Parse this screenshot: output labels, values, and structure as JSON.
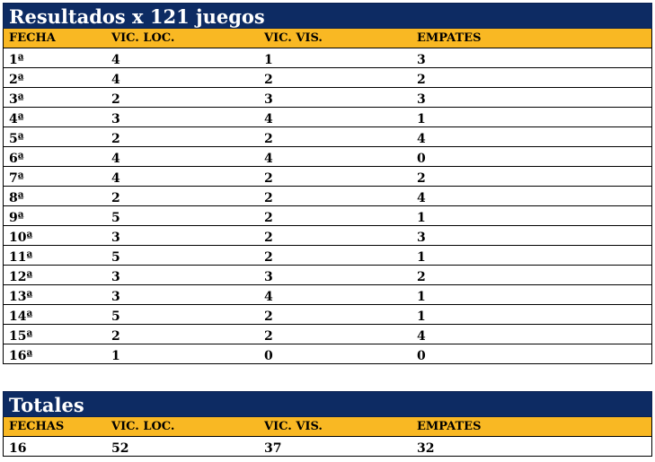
{
  "results": {
    "title": "Resultados x 121 juegos",
    "headers": [
      "FECHA",
      "VIC. LOC.",
      "VIC. VIS.",
      "EMPATES"
    ],
    "rows": [
      [
        "1ª",
        "4",
        "1",
        "3"
      ],
      [
        "2ª",
        "4",
        "2",
        "2"
      ],
      [
        "3ª",
        "2",
        "3",
        "3"
      ],
      [
        "4ª",
        "3",
        "4",
        "1"
      ],
      [
        "5ª",
        "2",
        "2",
        "4"
      ],
      [
        "6ª",
        "4",
        "4",
        "0"
      ],
      [
        "7ª",
        "4",
        "2",
        "2"
      ],
      [
        "8ª",
        "2",
        "2",
        "4"
      ],
      [
        "9ª",
        "5",
        "2",
        "1"
      ],
      [
        "10ª",
        "3",
        "2",
        "3"
      ],
      [
        "11ª",
        "5",
        "2",
        "1"
      ],
      [
        "12ª",
        "3",
        "3",
        "2"
      ],
      [
        "13ª",
        "3",
        "4",
        "1"
      ],
      [
        "14ª",
        "5",
        "2",
        "1"
      ],
      [
        "15ª",
        "2",
        "2",
        "4"
      ],
      [
        "16ª",
        "1",
        "0",
        "0"
      ]
    ]
  },
  "totals": {
    "title": "Totales",
    "headers": [
      "FECHAS",
      "VIC. LOC.",
      "VIC. VIS.",
      "EMPATES"
    ],
    "row": [
      "16",
      "52",
      "37",
      "32"
    ]
  },
  "colors": {
    "title_bg": "#0d2b63",
    "header_bg": "#f9b823"
  }
}
